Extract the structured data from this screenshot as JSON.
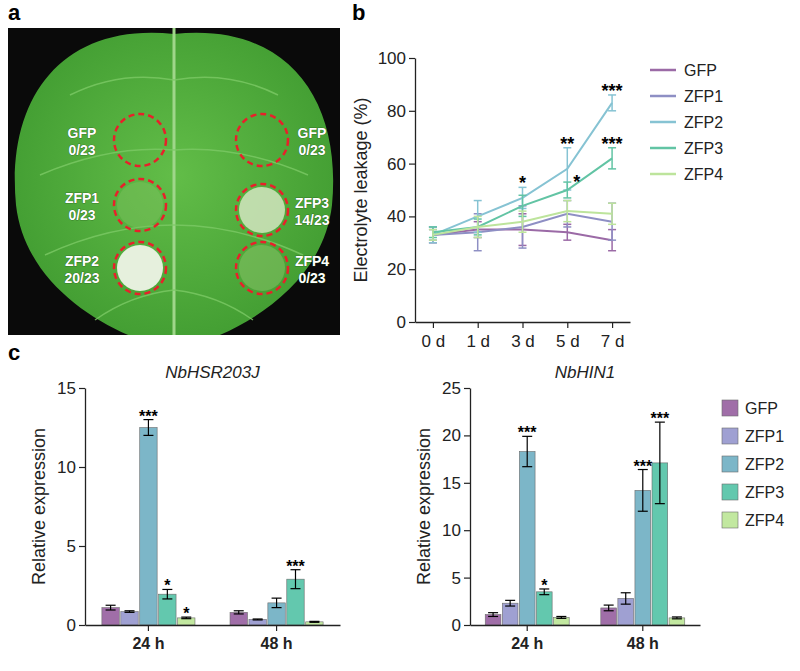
{
  "panel_letters": [
    "a",
    "b",
    "c"
  ],
  "leaf_assay": {
    "spots": [
      {
        "label": "GFP",
        "score": "0/23"
      },
      {
        "label": "GFP",
        "score": "0/23"
      },
      {
        "label": "ZFP1",
        "score": "0/23"
      },
      {
        "label": "ZFP3",
        "score": "14/23"
      },
      {
        "label": "ZFP2",
        "score": "20/23"
      },
      {
        "label": "ZFP4",
        "score": "0/23"
      }
    ]
  },
  "chart_data": [
    {
      "type": "line",
      "y_label": "Electrolyte leakage (%)",
      "categories": [
        "0 d",
        "1 d",
        "3 d",
        "5 d",
        "7 d"
      ],
      "ylim": [
        0,
        100
      ],
      "yticks": [
        0,
        20,
        40,
        60,
        80,
        100
      ],
      "legend": "right",
      "series": [
        {
          "name": "GFP",
          "color": "#9b6aa6",
          "values": [
            33,
            35,
            35,
            34,
            31
          ],
          "errors": [
            3,
            3,
            6,
            3,
            4
          ],
          "significance": [
            null,
            null,
            null,
            null,
            null
          ]
        },
        {
          "name": "ZFP1",
          "color": "#8e8fc4",
          "values": [
            33,
            34,
            36,
            41,
            38
          ],
          "errors": [
            2,
            7,
            8,
            5,
            7
          ],
          "significance": [
            null,
            null,
            null,
            null,
            null
          ]
        },
        {
          "name": "ZFP2",
          "color": "#86c3d3",
          "values": [
            33,
            40,
            47,
            58,
            83
          ],
          "errors": [
            3,
            6,
            4,
            8,
            3
          ],
          "significance": [
            null,
            null,
            "*",
            "**",
            "***"
          ]
        },
        {
          "name": "ZFP3",
          "color": "#62c4a4",
          "values": [
            34,
            36,
            44,
            50,
            62
          ],
          "errors": [
            2,
            3,
            4,
            3,
            4
          ],
          "significance": [
            null,
            null,
            null,
            "*",
            "***"
          ]
        },
        {
          "name": "ZFP4",
          "color": "#bde49c",
          "values": [
            33,
            36,
            38,
            42,
            41
          ],
          "errors": [
            2,
            4,
            4,
            4,
            4
          ],
          "significance": [
            null,
            null,
            null,
            null,
            null
          ]
        }
      ]
    },
    {
      "type": "bar",
      "title": "NbHSR203J",
      "y_label": "Relative expression",
      "categories": [
        "24 h",
        "48 h"
      ],
      "ylim": [
        0,
        15
      ],
      "yticks": [
        0,
        5,
        10,
        15
      ],
      "series": [
        {
          "name": "GFP",
          "color": "#a06ea8",
          "values": [
            1.1,
            0.8
          ],
          "errors": [
            0.15,
            0.1
          ],
          "significance": [
            null,
            null
          ]
        },
        {
          "name": "ZFP1",
          "color": "#9fa0d2",
          "values": [
            0.85,
            0.35
          ],
          "errors": [
            0.05,
            0.03
          ],
          "significance": [
            null,
            null
          ]
        },
        {
          "name": "ZFP2",
          "color": "#7cb6c8",
          "values": [
            12.5,
            1.4
          ],
          "errors": [
            0.5,
            0.3
          ],
          "significance": [
            "***",
            null
          ]
        },
        {
          "name": "ZFP3",
          "color": "#63c8ae",
          "values": [
            1.95,
            2.9
          ],
          "errors": [
            0.3,
            0.6
          ],
          "significance": [
            "*",
            "***"
          ]
        },
        {
          "name": "ZFP4",
          "color": "#c2e8a0",
          "values": [
            0.45,
            0.2
          ],
          "errors": [
            0.05,
            0.03
          ],
          "significance": [
            "*",
            null
          ]
        }
      ]
    },
    {
      "type": "bar",
      "title": "NbHIN1",
      "y_label": "Relative expression",
      "categories": [
        "24 h",
        "48 h"
      ],
      "ylim": [
        0,
        25
      ],
      "yticks": [
        0,
        5,
        10,
        15,
        20,
        25
      ],
      "legend": "right",
      "series": [
        {
          "name": "GFP",
          "color": "#a06ea8",
          "values": [
            1.1,
            1.8
          ],
          "errors": [
            0.2,
            0.3
          ],
          "significance": [
            null,
            null
          ]
        },
        {
          "name": "ZFP1",
          "color": "#9fa0d2",
          "values": [
            2.3,
            2.8
          ],
          "errors": [
            0.3,
            0.6
          ],
          "significance": [
            null,
            null
          ]
        },
        {
          "name": "ZFP2",
          "color": "#7cb6c8",
          "values": [
            18.3,
            14.2
          ],
          "errors": [
            1.6,
            2.2
          ],
          "significance": [
            "***",
            "***"
          ]
        },
        {
          "name": "ZFP3",
          "color": "#63c8ae",
          "values": [
            3.5,
            17.1
          ],
          "errors": [
            0.3,
            4.3
          ],
          "significance": [
            "*",
            "***"
          ]
        },
        {
          "name": "ZFP4",
          "color": "#c2e8a0",
          "values": [
            0.8,
            0.75
          ],
          "errors": [
            0.1,
            0.1
          ],
          "significance": [
            null,
            null
          ]
        }
      ]
    }
  ]
}
